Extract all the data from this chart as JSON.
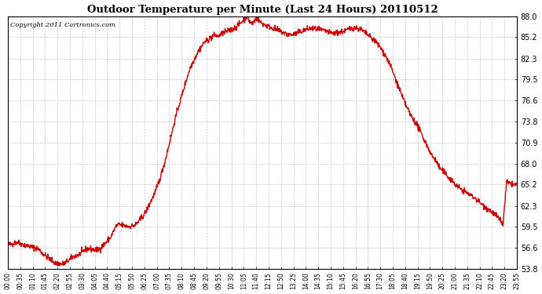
{
  "title": "Outdoor Temperature per Minute (Last 24 Hours) 20110512",
  "copyright_text": "Copyright 2011 Cartronics.com",
  "line_color": "#cc0000",
  "background_color": "#ffffff",
  "grid_color": "#bbbbbb",
  "y_ticks": [
    53.8,
    56.6,
    59.5,
    62.3,
    65.2,
    68.0,
    70.9,
    73.8,
    76.6,
    79.5,
    82.3,
    85.2,
    88.0
  ],
  "y_min": 53.8,
  "y_max": 88.0,
  "x_tick_labels": [
    "00:00",
    "00:35",
    "01:10",
    "01:45",
    "02:20",
    "02:55",
    "03:30",
    "04:05",
    "04:40",
    "05:15",
    "05:50",
    "06:25",
    "07:00",
    "07:35",
    "08:10",
    "08:45",
    "09:20",
    "09:55",
    "10:30",
    "11:05",
    "11:40",
    "12:15",
    "12:50",
    "13:25",
    "14:00",
    "14:35",
    "15:10",
    "15:45",
    "16:20",
    "16:55",
    "17:30",
    "18:05",
    "18:40",
    "19:15",
    "19:50",
    "20:25",
    "21:00",
    "21:35",
    "22:10",
    "22:45",
    "23:20",
    "23:55"
  ],
  "control_points": [
    [
      0,
      57.0
    ],
    [
      15,
      57.2
    ],
    [
      25,
      57.4
    ],
    [
      40,
      57.1
    ],
    [
      55,
      56.9
    ],
    [
      70,
      56.7
    ],
    [
      85,
      56.5
    ],
    [
      100,
      55.8
    ],
    [
      115,
      55.2
    ],
    [
      125,
      54.9
    ],
    [
      135,
      54.5
    ],
    [
      145,
      54.5
    ],
    [
      150,
      54.4
    ],
    [
      160,
      54.5
    ],
    [
      175,
      55.0
    ],
    [
      185,
      55.4
    ],
    [
      200,
      55.7
    ],
    [
      210,
      56.0
    ],
    [
      220,
      56.4
    ],
    [
      230,
      56.5
    ],
    [
      240,
      56.4
    ],
    [
      250,
      56.3
    ],
    [
      260,
      56.5
    ],
    [
      270,
      57.0
    ],
    [
      290,
      58.0
    ],
    [
      305,
      59.5
    ],
    [
      315,
      59.8
    ],
    [
      320,
      59.7
    ],
    [
      330,
      59.6
    ],
    [
      345,
      59.5
    ],
    [
      360,
      59.7
    ],
    [
      375,
      60.5
    ],
    [
      390,
      61.5
    ],
    [
      400,
      62.5
    ],
    [
      415,
      64.0
    ],
    [
      430,
      66.0
    ],
    [
      445,
      68.5
    ],
    [
      460,
      71.5
    ],
    [
      475,
      74.5
    ],
    [
      490,
      77.0
    ],
    [
      505,
      79.5
    ],
    [
      515,
      81.0
    ],
    [
      525,
      82.0
    ],
    [
      535,
      83.0
    ],
    [
      545,
      83.8
    ],
    [
      555,
      84.5
    ],
    [
      565,
      84.8
    ],
    [
      575,
      85.2
    ],
    [
      585,
      85.5
    ],
    [
      593,
      85.3
    ],
    [
      600,
      85.5
    ],
    [
      610,
      85.8
    ],
    [
      620,
      86.0
    ],
    [
      630,
      86.2
    ],
    [
      640,
      86.4
    ],
    [
      645,
      86.6
    ],
    [
      650,
      86.8
    ],
    [
      655,
      87.0
    ],
    [
      660,
      87.2
    ],
    [
      665,
      87.5
    ],
    [
      670,
      87.8
    ],
    [
      675,
      88.0
    ],
    [
      678,
      87.8
    ],
    [
      682,
      87.5
    ],
    [
      686,
      87.2
    ],
    [
      690,
      87.0
    ],
    [
      695,
      87.3
    ],
    [
      700,
      87.6
    ],
    [
      705,
      87.8
    ],
    [
      710,
      87.5
    ],
    [
      715,
      87.2
    ],
    [
      720,
      87.0
    ],
    [
      730,
      86.8
    ],
    [
      740,
      86.6
    ],
    [
      750,
      86.4
    ],
    [
      760,
      86.2
    ],
    [
      770,
      86.0
    ],
    [
      780,
      85.8
    ],
    [
      790,
      85.6
    ],
    [
      800,
      85.5
    ],
    [
      810,
      85.6
    ],
    [
      820,
      85.8
    ],
    [
      830,
      86.0
    ],
    [
      840,
      86.2
    ],
    [
      850,
      86.3
    ],
    [
      860,
      86.4
    ],
    [
      870,
      86.3
    ],
    [
      880,
      86.2
    ],
    [
      890,
      86.1
    ],
    [
      900,
      86.0
    ],
    [
      910,
      85.8
    ],
    [
      920,
      85.7
    ],
    [
      930,
      85.8
    ],
    [
      940,
      85.9
    ],
    [
      950,
      86.0
    ],
    [
      960,
      86.2
    ],
    [
      970,
      86.4
    ],
    [
      980,
      86.5
    ],
    [
      990,
      86.4
    ],
    [
      1000,
      86.2
    ],
    [
      1005,
      86.0
    ],
    [
      1010,
      85.8
    ],
    [
      1015,
      85.6
    ],
    [
      1020,
      85.4
    ],
    [
      1025,
      85.2
    ],
    [
      1030,
      85.0
    ],
    [
      1040,
      84.6
    ],
    [
      1050,
      84.0
    ],
    [
      1060,
      83.3
    ],
    [
      1070,
      82.5
    ],
    [
      1080,
      81.5
    ],
    [
      1090,
      80.3
    ],
    [
      1100,
      79.0
    ],
    [
      1110,
      77.8
    ],
    [
      1115,
      77.0
    ],
    [
      1120,
      76.6
    ],
    [
      1125,
      76.0
    ],
    [
      1130,
      75.5
    ],
    [
      1135,
      75.0
    ],
    [
      1140,
      74.5
    ],
    [
      1150,
      73.8
    ],
    [
      1160,
      73.0
    ],
    [
      1170,
      72.0
    ],
    [
      1175,
      71.5
    ],
    [
      1180,
      71.0
    ],
    [
      1190,
      70.0
    ],
    [
      1200,
      69.0
    ],
    [
      1210,
      68.5
    ],
    [
      1215,
      68.0
    ],
    [
      1220,
      67.5
    ],
    [
      1230,
      67.0
    ],
    [
      1240,
      66.5
    ],
    [
      1250,
      66.0
    ],
    [
      1255,
      65.8
    ],
    [
      1260,
      65.5
    ],
    [
      1265,
      65.2
    ],
    [
      1270,
      65.0
    ],
    [
      1275,
      64.8
    ],
    [
      1280,
      64.6
    ],
    [
      1290,
      64.3
    ],
    [
      1300,
      64.0
    ],
    [
      1310,
      63.7
    ],
    [
      1320,
      63.4
    ],
    [
      1330,
      63.0
    ],
    [
      1340,
      62.5
    ],
    [
      1350,
      62.2
    ],
    [
      1360,
      61.8
    ],
    [
      1370,
      61.4
    ],
    [
      1380,
      61.0
    ],
    [
      1390,
      60.5
    ],
    [
      1400,
      59.8
    ],
    [
      1410,
      65.5
    ],
    [
      1420,
      65.3
    ],
    [
      1430,
      65.2
    ],
    [
      1439,
      65.1
    ]
  ],
  "line_width": 1.0,
  "noise_seed": 42,
  "noise_std": 0.2
}
